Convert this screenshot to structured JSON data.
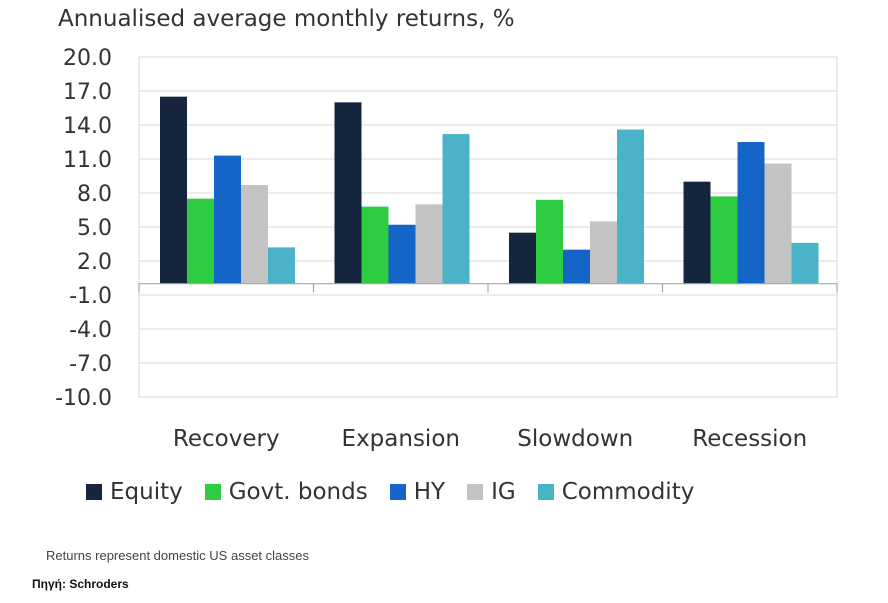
{
  "chart_data": {
    "type": "bar",
    "title": "Annualised average monthly returns, %",
    "categories": [
      "Recovery",
      "Expansion",
      "Slowdown",
      "Recession"
    ],
    "series": [
      {
        "name": "Equity",
        "color": "#14253d",
        "values": [
          16.5,
          16.0,
          4.5,
          9.0
        ]
      },
      {
        "name": "Govt. bonds",
        "color": "#2ecc40",
        "values": [
          7.5,
          6.8,
          7.4,
          7.7
        ]
      },
      {
        "name": "HY",
        "color": "#1565c8",
        "values": [
          11.3,
          5.2,
          3.0,
          12.5
        ]
      },
      {
        "name": "IG",
        "color": "#c3c3c3",
        "values": [
          8.7,
          7.0,
          5.5,
          10.6
        ]
      },
      {
        "name": "Commodity",
        "color": "#4ab3c8",
        "values": [
          3.2,
          13.2,
          13.6,
          3.6
        ]
      }
    ],
    "yticks": [
      "20.0",
      "17.0",
      "14.0",
      "11.0",
      "8.0",
      "5.0",
      "2.0",
      "-1.0",
      "-4.0",
      "-7.0",
      "-10.0"
    ],
    "ylim": [
      -10,
      20
    ],
    "grid": true,
    "legend_position": "bottom"
  },
  "footnote": "Returns represent domestic US asset classes",
  "source": "Πηγή: Schroders"
}
